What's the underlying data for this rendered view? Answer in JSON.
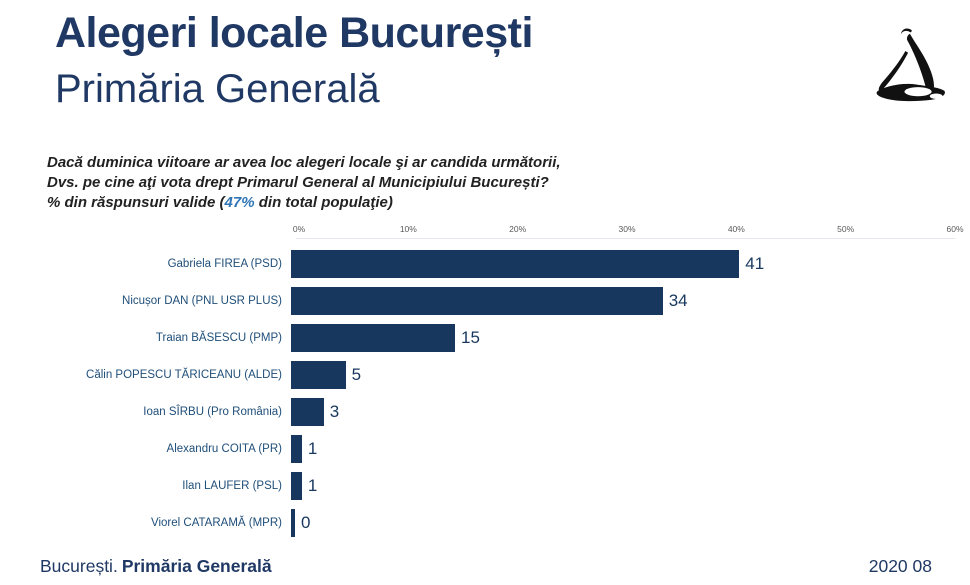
{
  "header": {
    "title": "Alegeri locale București",
    "subtitle": "Primăria Generală"
  },
  "logo": {
    "name": "ink-sketch-figure-logo"
  },
  "question": {
    "line1": "Dacă duminica viitoare ar avea loc alegeri locale şi ar candida următorii,",
    "line2": "Dvs. pe cine aţi vota drept Primarul General al Municipiului București?",
    "note_prefix": "% din răspunsuri valide (",
    "note_highlight": "47%",
    "note_suffix": " din total populaţie)"
  },
  "chart_data": {
    "type": "bar",
    "orientation": "horizontal",
    "title": "",
    "categories": [
      "Gabriela FIREA (PSD)",
      "Nicușor DAN (PNL USR PLUS)",
      "Traian BĂSESCU (PMP)",
      "Călin POPESCU TĂRICEANU (ALDE)",
      "Ioan SÎRBU (Pro România)",
      "Alexandru COITA (PR)",
      "Ilan LAUFER (PSL)",
      "Viorel CATARAMĂ (MPR)"
    ],
    "values": [
      41,
      34,
      15,
      5,
      3,
      1,
      1,
      0
    ],
    "xlim": [
      0,
      60
    ],
    "x_ticks": [
      "0%",
      "10%",
      "20%",
      "30%",
      "40%",
      "50%",
      "60%"
    ],
    "grid": false,
    "legend": false,
    "bar_color": "#17375E",
    "value_label_color": "#17375E",
    "category_label_color": "#1F4E79"
  },
  "footer": {
    "left_regular": "București.",
    "left_bold": "Primăria Generală",
    "right": "2020 08"
  },
  "colors": {
    "navy_title": "#1F3864",
    "bar": "#17375E",
    "category_label": "#1F4E79",
    "note_gray": "#9B9B9B",
    "note_highlight": "#2E75B6",
    "axis_tick": "#595959"
  }
}
